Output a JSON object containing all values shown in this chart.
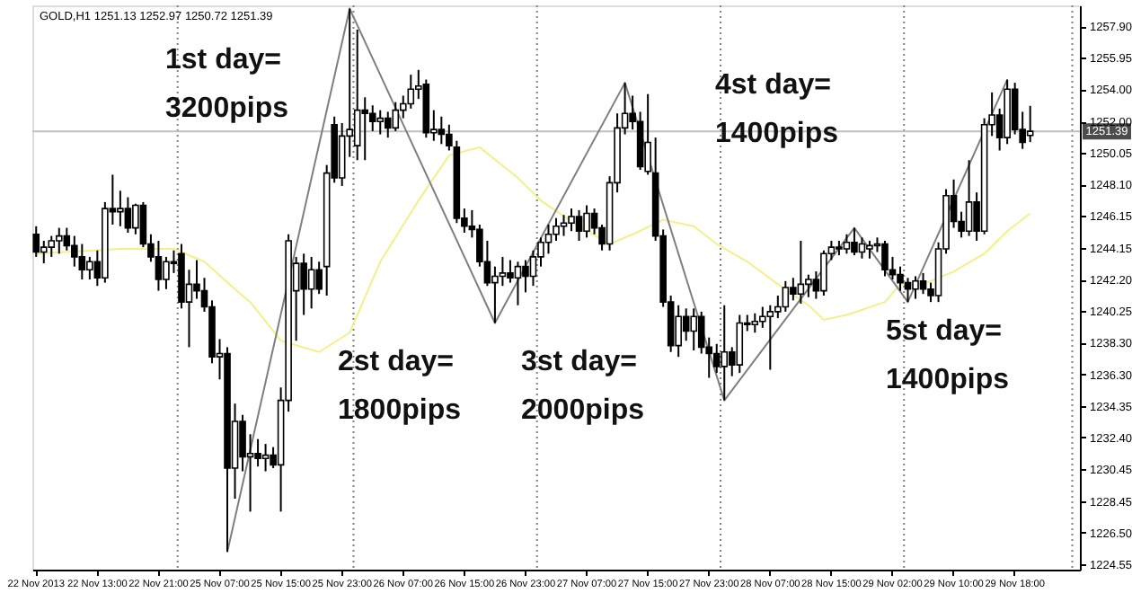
{
  "chart_data": {
    "type": "candlestick",
    "title": "GOLD,H1  1251.13 1252.97 1250.72 1251.39",
    "annotations": [
      "1st day=\n3200pips",
      "2st day=\n1800pips",
      "3st day=\n2000pips",
      "4st day=\n1400pips",
      "5st day=\n1400pips"
    ],
    "categories": [
      "22 Nov 2013",
      null,
      null,
      null,
      null,
      null,
      null,
      null,
      "22 Nov 13:00",
      null,
      null,
      null,
      null,
      null,
      null,
      null,
      "22 Nov 21:00",
      null,
      null,
      null,
      null,
      null,
      null,
      null,
      "25 Nov 07:00",
      null,
      null,
      null,
      null,
      null,
      null,
      null,
      "25 Nov 15:00",
      null,
      null,
      null,
      null,
      null,
      null,
      null,
      "25 Nov 23:00",
      null,
      null,
      null,
      null,
      null,
      null,
      null,
      "26 Nov 07:00",
      null,
      null,
      null,
      null,
      null,
      null,
      null,
      "26 Nov 15:00",
      null,
      null,
      null,
      null,
      null,
      null,
      null,
      "26 Nov 23:00",
      null,
      null,
      null,
      null,
      null,
      null,
      null,
      "27 Nov 07:00",
      null,
      null,
      null,
      null,
      null,
      null,
      null,
      "27 Nov 15:00",
      null,
      null,
      null,
      null,
      null,
      null,
      null,
      "27 Nov 23:00",
      null,
      null,
      null,
      null,
      null,
      null,
      null,
      "28 Nov 07:00",
      null,
      null,
      null,
      null,
      null,
      null,
      null,
      "28 Nov 15:00",
      null,
      null,
      null,
      null,
      null,
      null,
      null,
      "29 Nov 02:00",
      null,
      null,
      null,
      null,
      null,
      null,
      null,
      "29 Nov 10:00",
      null,
      null,
      null,
      null,
      null,
      null,
      null,
      "29 Nov 18:00",
      null,
      null,
      null,
      null,
      null,
      null,
      null,
      null
    ],
    "ohlc": [
      [
        1245.0,
        1245.5,
        1243.6,
        1243.9
      ],
      [
        1243.9,
        1244.6,
        1243.2,
        1244.2
      ],
      [
        1244.2,
        1244.9,
        1243.6,
        1244.6
      ],
      [
        1244.6,
        1245.4,
        1243.8,
        1244.9
      ],
      [
        1244.9,
        1245.4,
        1244.0,
        1244.3
      ],
      [
        1244.3,
        1244.9,
        1243.0,
        1243.6
      ],
      [
        1243.6,
        1244.4,
        1242.2,
        1242.8
      ],
      [
        1242.8,
        1243.6,
        1242.2,
        1243.3
      ],
      [
        1243.3,
        1244.0,
        1241.8,
        1242.3
      ],
      [
        1242.3,
        1247.0,
        1242.0,
        1246.6
      ],
      [
        1246.6,
        1248.7,
        1245.6,
        1246.4
      ],
      [
        1246.4,
        1247.7,
        1245.5,
        1246.6
      ],
      [
        1246.6,
        1247.3,
        1245.1,
        1245.4
      ],
      [
        1245.4,
        1246.9,
        1245.0,
        1246.8
      ],
      [
        1246.8,
        1247.0,
        1244.2,
        1244.4
      ],
      [
        1244.4,
        1245.0,
        1243.3,
        1243.6
      ],
      [
        1243.6,
        1244.6,
        1241.5,
        1242.2
      ],
      [
        1242.2,
        1243.6,
        1241.6,
        1243.3
      ],
      [
        1243.3,
        1244.0,
        1242.6,
        1243.2
      ],
      [
        1243.8,
        1244.4,
        1240.4,
        1240.8
      ],
      [
        1240.8,
        1242.8,
        1238.0,
        1241.9
      ],
      [
        1241.9,
        1243.4,
        1241.0,
        1241.5
      ],
      [
        1241.5,
        1242.3,
        1240.2,
        1240.5
      ],
      [
        1240.5,
        1240.9,
        1237.0,
        1237.4
      ],
      [
        1237.4,
        1238.5,
        1236.0,
        1237.6
      ],
      [
        1237.6,
        1238.0,
        1225.3,
        1230.5
      ],
      [
        1230.5,
        1234.5,
        1228.6,
        1233.4
      ],
      [
        1233.4,
        1233.8,
        1230.3,
        1231.2
      ],
      [
        1231.2,
        1232.6,
        1227.8,
        1231.4
      ],
      [
        1231.4,
        1232.3,
        1230.6,
        1231.1
      ],
      [
        1231.1,
        1232.0,
        1230.3,
        1231.3
      ],
      [
        1231.3,
        1231.8,
        1230.5,
        1230.7
      ],
      [
        1230.7,
        1235.5,
        1227.8,
        1234.7
      ],
      [
        1234.7,
        1245.0,
        1234.0,
        1244.6
      ],
      [
        1241.5,
        1243.6,
        1238.4,
        1243.2
      ],
      [
        1243.2,
        1243.8,
        1240.0,
        1241.6
      ],
      [
        1241.6,
        1243.6,
        1240.4,
        1242.8
      ],
      [
        1242.8,
        1243.3,
        1241.3,
        1241.6
      ],
      [
        1243.0,
        1249.3,
        1241.2,
        1248.8
      ],
      [
        1251.8,
        1252.3,
        1248.2,
        1248.5
      ],
      [
        1248.5,
        1251.9,
        1248.0,
        1251.1
      ],
      [
        1251.1,
        1259.0,
        1249.8,
        1251.5
      ],
      [
        1250.5,
        1257.7,
        1249.6,
        1252.7
      ],
      [
        1252.7,
        1253.5,
        1249.6,
        1252.5
      ],
      [
        1252.5,
        1253.0,
        1251.4,
        1252.0
      ],
      [
        1252.0,
        1252.7,
        1251.2,
        1252.2
      ],
      [
        1252.2,
        1252.6,
        1251.0,
        1251.6
      ],
      [
        1251.6,
        1253.2,
        1251.4,
        1252.7
      ],
      [
        1252.7,
        1253.6,
        1252.2,
        1253.1
      ],
      [
        1253.1,
        1254.9,
        1252.8,
        1254.0
      ],
      [
        1254.0,
        1255.2,
        1253.4,
        1254.2
      ],
      [
        1254.3,
        1254.6,
        1251.0,
        1251.3
      ],
      [
        1251.3,
        1252.7,
        1250.8,
        1251.5
      ],
      [
        1251.5,
        1252.3,
        1250.6,
        1251.2
      ],
      [
        1251.2,
        1251.8,
        1250.2,
        1250.5
      ],
      [
        1250.4,
        1250.8,
        1245.7,
        1246.0
      ],
      [
        1246.0,
        1246.6,
        1245.1,
        1245.5
      ],
      [
        1245.5,
        1246.5,
        1244.8,
        1245.3
      ],
      [
        1245.3,
        1245.6,
        1243.0,
        1243.3
      ],
      [
        1243.3,
        1244.6,
        1241.8,
        1242.0
      ],
      [
        1242.0,
        1243.0,
        1239.5,
        1242.4
      ],
      [
        1242.4,
        1243.6,
        1241.8,
        1242.6
      ],
      [
        1242.6,
        1243.4,
        1242.0,
        1242.3
      ],
      [
        1242.3,
        1243.3,
        1240.6,
        1243.0
      ],
      [
        1243.0,
        1243.4,
        1241.4,
        1242.4
      ],
      [
        1242.4,
        1244.0,
        1241.8,
        1243.6
      ],
      [
        1243.6,
        1244.8,
        1243.0,
        1244.5
      ],
      [
        1244.5,
        1245.6,
        1243.8,
        1245.0
      ],
      [
        1245.0,
        1246.0,
        1244.6,
        1245.5
      ],
      [
        1245.5,
        1246.2,
        1244.9,
        1245.7
      ],
      [
        1245.7,
        1246.6,
        1245.2,
        1246.1
      ],
      [
        1246.1,
        1246.5,
        1244.6,
        1245.2
      ],
      [
        1245.2,
        1246.8,
        1244.8,
        1246.3
      ],
      [
        1246.3,
        1246.6,
        1245.0,
        1245.4
      ],
      [
        1245.4,
        1245.6,
        1244.0,
        1244.4
      ],
      [
        1244.4,
        1248.6,
        1244.0,
        1248.2
      ],
      [
        1248.2,
        1252.5,
        1247.6,
        1251.6
      ],
      [
        1251.6,
        1254.4,
        1251.2,
        1252.5
      ],
      [
        1252.5,
        1253.6,
        1251.5,
        1252.0
      ],
      [
        1252.0,
        1252.6,
        1249.0,
        1249.2
      ],
      [
        1248.9,
        1253.7,
        1248.7,
        1250.7
      ],
      [
        1248.8,
        1251.0,
        1244.6,
        1244.9
      ],
      [
        1244.9,
        1245.3,
        1240.5,
        1240.8
      ],
      [
        1240.8,
        1241.2,
        1237.7,
        1238.1
      ],
      [
        1238.1,
        1240.6,
        1237.4,
        1239.9
      ],
      [
        1239.9,
        1240.4,
        1238.4,
        1239.0
      ],
      [
        1239.0,
        1240.4,
        1237.8,
        1239.9
      ],
      [
        1239.9,
        1240.2,
        1237.6,
        1238.0
      ],
      [
        1238.0,
        1238.6,
        1236.1,
        1237.6
      ],
      [
        1237.6,
        1238.2,
        1236.4,
        1236.8
      ],
      [
        1236.8,
        1240.6,
        1234.7,
        1237.7
      ],
      [
        1237.7,
        1238.0,
        1236.2,
        1236.9
      ],
      [
        1236.9,
        1240.0,
        1236.4,
        1239.5
      ],
      [
        1239.5,
        1240.0,
        1239.0,
        1239.4
      ],
      [
        1239.4,
        1240.1,
        1238.9,
        1239.6
      ],
      [
        1239.6,
        1240.5,
        1239.2,
        1239.9
      ],
      [
        1239.9,
        1240.6,
        1236.6,
        1240.2
      ],
      [
        1240.2,
        1241.2,
        1239.8,
        1240.5
      ],
      [
        1240.5,
        1242.1,
        1240.2,
        1241.7
      ],
      [
        1241.7,
        1242.3,
        1240.9,
        1241.3
      ],
      [
        1241.3,
        1244.6,
        1240.7,
        1241.9
      ],
      [
        1241.9,
        1242.5,
        1241.1,
        1242.2
      ],
      [
        1242.2,
        1242.7,
        1241.0,
        1241.5
      ],
      [
        1241.5,
        1244.0,
        1241.2,
        1243.8
      ],
      [
        1243.8,
        1244.6,
        1243.4,
        1244.2
      ],
      [
        1244.2,
        1244.6,
        1243.7,
        1244.1
      ],
      [
        1244.1,
        1245.0,
        1243.8,
        1244.5
      ],
      [
        1244.5,
        1245.4,
        1243.7,
        1243.9
      ],
      [
        1243.9,
        1244.8,
        1243.5,
        1244.4
      ],
      [
        1244.1,
        1244.6,
        1243.5,
        1244.3
      ],
      [
        1244.3,
        1244.8,
        1243.9,
        1244.4
      ],
      [
        1244.4,
        1244.6,
        1242.4,
        1242.8
      ],
      [
        1242.8,
        1243.6,
        1242.2,
        1242.5
      ],
      [
        1242.5,
        1243.0,
        1241.5,
        1242.0
      ],
      [
        1242.0,
        1242.3,
        1240.8,
        1241.6
      ],
      [
        1241.6,
        1242.4,
        1241.0,
        1242.1
      ],
      [
        1242.1,
        1242.6,
        1241.3,
        1241.6
      ],
      [
        1241.6,
        1242.0,
        1240.8,
        1241.2
      ],
      [
        1241.2,
        1244.5,
        1240.8,
        1244.1
      ],
      [
        1244.1,
        1247.8,
        1243.8,
        1247.4
      ],
      [
        1247.4,
        1248.4,
        1245.4,
        1245.8
      ],
      [
        1245.8,
        1246.4,
        1244.8,
        1245.2
      ],
      [
        1245.2,
        1249.6,
        1244.9,
        1247.0
      ],
      [
        1247.0,
        1247.6,
        1244.6,
        1245.2
      ],
      [
        1245.2,
        1252.2,
        1245.0,
        1251.8
      ],
      [
        1251.8,
        1253.8,
        1251.1,
        1252.4
      ],
      [
        1252.4,
        1252.8,
        1250.2,
        1251.0
      ],
      [
        1251.0,
        1254.6,
        1250.6,
        1254.0
      ],
      [
        1254.0,
        1254.4,
        1251.2,
        1251.5
      ],
      [
        1251.5,
        1252.6,
        1250.3,
        1250.7
      ],
      [
        1251.13,
        1252.97,
        1250.72,
        1251.39
      ],
      null,
      null,
      null,
      null,
      null,
      null
    ],
    "series": [
      {
        "type": "line",
        "color": "#f5ef8a",
        "values": [
          1243.8,
          null,
          null,
          null,
          null,
          null,
          null,
          null,
          null,
          null,
          null,
          1244.1,
          null,
          null,
          null,
          null,
          null,
          null,
          1244.1,
          null,
          null,
          null,
          1243.3,
          null,
          null,
          null,
          1241.6,
          null,
          1240.8,
          null,
          null,
          null,
          1238.4,
          null,
          null,
          null,
          null,
          1237.7,
          null,
          null,
          null,
          1238.9,
          null,
          null,
          null,
          1243.3,
          null,
          null,
          null,
          null,
          1247.1,
          null,
          null,
          null,
          1249.9,
          null,
          null,
          null,
          1250.4,
          null,
          null,
          null,
          null,
          1248.5,
          null,
          null,
          1247.1,
          null,
          null,
          null,
          1245.8,
          null,
          null,
          null,
          null,
          1244.4,
          null,
          null,
          1245.0,
          null,
          null,
          null,
          1245.9,
          null,
          null,
          null,
          1245.5,
          null,
          null,
          1244.4,
          null,
          null,
          null,
          1243.3,
          null,
          null,
          null,
          1241.9,
          null,
          null,
          null,
          1240.6,
          null,
          1239.7,
          null,
          null,
          1240.0,
          null,
          null,
          null,
          null,
          1240.8,
          null,
          1241.9,
          null,
          null,
          1241.9,
          null,
          null,
          null,
          1242.7,
          null,
          null,
          null,
          1243.8,
          null,
          null,
          1245.2,
          null,
          null,
          1246.3,
          null,
          null,
          null,
          null,
          null,
          null
        ]
      },
      {
        "type": "line",
        "color": "#7f7f7f",
        "values": [
          null,
          null,
          null,
          null,
          null,
          null,
          null,
          null,
          null,
          null,
          null,
          null,
          null,
          null,
          null,
          null,
          null,
          null,
          null,
          null,
          null,
          null,
          null,
          null,
          null,
          1225.3,
          null,
          null,
          null,
          null,
          null,
          null,
          null,
          null,
          null,
          null,
          null,
          null,
          null,
          null,
          null,
          1259.0,
          null,
          null,
          null,
          null,
          null,
          null,
          null,
          null,
          null,
          null,
          null,
          null,
          null,
          null,
          null,
          null,
          null,
          null,
          1239.5,
          null,
          null,
          null,
          null,
          null,
          null,
          null,
          null,
          null,
          null,
          null,
          null,
          null,
          null,
          null,
          null,
          1254.4,
          null,
          null,
          null,
          null,
          null,
          null,
          null,
          null,
          null,
          null,
          null,
          null,
          1234.7,
          null,
          null,
          null,
          null,
          null,
          null,
          null,
          null,
          null,
          null,
          null,
          null,
          null,
          null,
          null,
          null,
          1245.4,
          null,
          null,
          null,
          null,
          null,
          null,
          1240.8,
          null,
          null,
          null,
          null,
          null,
          null,
          null,
          null,
          null,
          null,
          null,
          null,
          1254.6,
          null,
          null,
          null,
          null,
          null,
          null,
          null,
          null,
          null
        ]
      }
    ],
    "ref_lines": [
      {
        "axis": "y",
        "value": 1251.39,
        "label": "1251.39",
        "color": "#c0c0c0"
      }
    ],
    "ylim": [
      1224.2,
      1259.2
    ],
    "yticks": [
      {
        "value": 1224.55,
        "label": "1224.55"
      },
      {
        "value": 1226.5,
        "label": "1226.50"
      },
      {
        "value": 1228.45,
        "label": "1228.45"
      },
      {
        "value": 1230.45,
        "label": "1230.45"
      },
      {
        "value": 1232.4,
        "label": "1232.40"
      },
      {
        "value": 1234.35,
        "label": "1234.35"
      },
      {
        "value": 1236.3,
        "label": "1236.30"
      },
      {
        "value": 1238.3,
        "label": "1238.30"
      },
      {
        "value": 1240.25,
        "label": "1240.25"
      },
      {
        "value": 1242.2,
        "label": "1242.20"
      },
      {
        "value": 1244.15,
        "label": "1244.15"
      },
      {
        "value": 1246.15,
        "label": "1246.15"
      },
      {
        "value": 1248.1,
        "label": "1248.10"
      },
      {
        "value": 1250.05,
        "label": "1250.05"
      },
      {
        "value": 1252.0,
        "label": "1252.00"
      },
      {
        "value": 1254.0,
        "label": "1254.00"
      },
      {
        "value": 1255.95,
        "label": "1255.95"
      },
      {
        "value": 1257.9,
        "label": "1257.90"
      }
    ],
    "grid": false
  }
}
